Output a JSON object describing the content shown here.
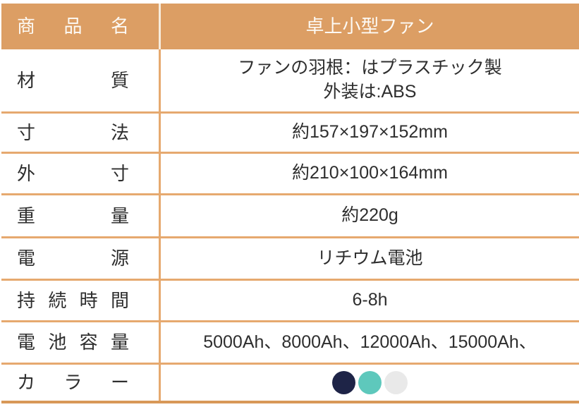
{
  "table": {
    "header": {
      "label": "商品名",
      "value": "卓上小型ファン"
    },
    "rows": [
      {
        "label": "材質",
        "value": "ファンの羽根：はプラスチック製\n外装は:ABS"
      },
      {
        "label": "寸法",
        "value": "約157×197×152mm"
      },
      {
        "label": "外寸",
        "value": "約210×100×164mm"
      },
      {
        "label": "重量",
        "value": "約220g"
      },
      {
        "label": "電源",
        "value": "リチウム電池"
      },
      {
        "label": "持続時間",
        "value": "6-8h"
      },
      {
        "label": "電池容量",
        "value": "5000Ah、8000Ah、12000Ah、15000Ah、"
      },
      {
        "label": "カラー",
        "swatches": [
          "#1E2447",
          "#5EC8BC",
          "#E9E9E9"
        ],
        "swatch_names": [
          "navy",
          "teal",
          "light-gray"
        ]
      }
    ]
  },
  "colors": {
    "header_bg": "#DC9E64",
    "grid_line": "#E6A96F",
    "bottom_border": "#D89858",
    "header_text": "#FDFAF5",
    "body_text": "#2E2E2E"
  }
}
